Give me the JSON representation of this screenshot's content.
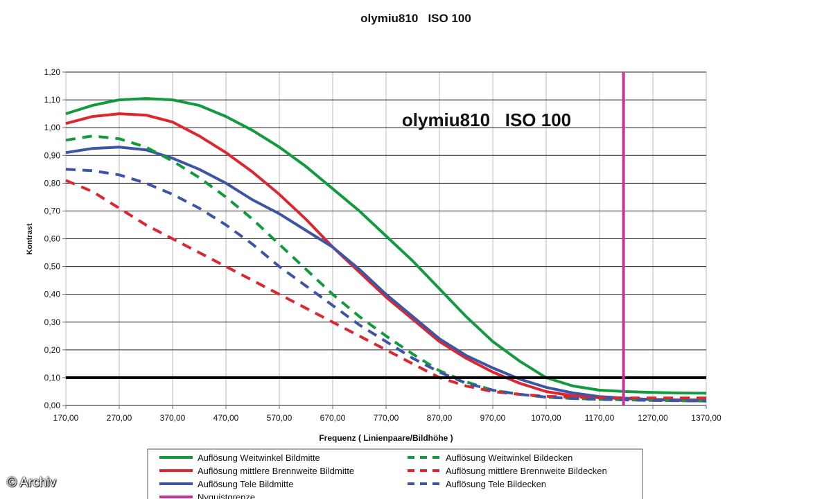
{
  "chart_data": {
    "type": "line",
    "title": "olymiu810   ISO 100",
    "inner_title": "olymiu810   ISO 100",
    "xlabel": "Frequenz ( Linienpaare/Bildhöhe )",
    "ylabel": "Kontrast",
    "xlim": [
      170,
      1370
    ],
    "ylim": [
      0,
      1.2
    ],
    "xticks": [
      "170,00",
      "270,00",
      "370,00",
      "470,00",
      "570,00",
      "670,00",
      "770,00",
      "870,00",
      "970,00",
      "1070,00",
      "1170,00",
      "1270,00",
      "1370,00"
    ],
    "yticks": [
      "0,00",
      "0,10",
      "0,20",
      "0,30",
      "0,40",
      "0,50",
      "0,60",
      "0,70",
      "0,80",
      "0,90",
      "1,00",
      "1,10",
      "1,20"
    ],
    "grid": "horizontal",
    "reference_line": {
      "y": 0.1,
      "color": "#000000"
    },
    "nyquist": {
      "x": 1215,
      "name": "Nyquistgrenze",
      "color": "#cc3399"
    },
    "legend_position": "bottom",
    "series": [
      {
        "name": "Auflösung Weitwinkel Bildmitte",
        "color": "#129a3e",
        "dash": false,
        "x": [
          170,
          220,
          270,
          320,
          370,
          420,
          470,
          520,
          570,
          620,
          670,
          720,
          770,
          820,
          870,
          920,
          970,
          1020,
          1070,
          1120,
          1170,
          1220,
          1270,
          1320,
          1370
        ],
        "y": [
          1.05,
          1.08,
          1.1,
          1.105,
          1.1,
          1.08,
          1.04,
          0.99,
          0.93,
          0.86,
          0.78,
          0.7,
          0.61,
          0.52,
          0.42,
          0.32,
          0.23,
          0.16,
          0.1,
          0.07,
          0.055,
          0.05,
          0.047,
          0.045,
          0.044
        ]
      },
      {
        "name": "Auflösung mittlere Brennweite Bildmitte",
        "color": "#dd2730",
        "dash": false,
        "x": [
          170,
          220,
          270,
          320,
          370,
          420,
          470,
          520,
          570,
          620,
          670,
          720,
          770,
          820,
          870,
          920,
          970,
          1020,
          1070,
          1120,
          1170,
          1220,
          1270,
          1320,
          1370
        ],
        "y": [
          1.015,
          1.04,
          1.05,
          1.045,
          1.02,
          0.97,
          0.91,
          0.84,
          0.76,
          0.67,
          0.57,
          0.48,
          0.39,
          0.31,
          0.23,
          0.17,
          0.12,
          0.08,
          0.05,
          0.035,
          0.028,
          0.024,
          0.022,
          0.02,
          0.02
        ]
      },
      {
        "name": "Auflösung Tele Bildmitte",
        "color": "#3e55a6",
        "dash": false,
        "x": [
          170,
          220,
          270,
          320,
          370,
          420,
          470,
          520,
          570,
          620,
          670,
          720,
          770,
          820,
          870,
          920,
          970,
          1020,
          1070,
          1120,
          1170,
          1220,
          1270,
          1320,
          1370
        ],
        "y": [
          0.91,
          0.925,
          0.93,
          0.92,
          0.89,
          0.85,
          0.8,
          0.74,
          0.69,
          0.63,
          0.57,
          0.49,
          0.4,
          0.32,
          0.24,
          0.18,
          0.135,
          0.095,
          0.065,
          0.045,
          0.032,
          0.026,
          0.021,
          0.018,
          0.016
        ]
      },
      {
        "name": "Nyquistgrenze",
        "color": "#cc3399",
        "dash": false,
        "x": [
          1215,
          1215
        ],
        "y": [
          0,
          1.2
        ]
      },
      {
        "name": "Auflösung Weitwinkel Bildecken",
        "color": "#129a3e",
        "dash": true,
        "x": [
          170,
          220,
          270,
          320,
          370,
          420,
          470,
          520,
          570,
          620,
          670,
          720,
          770,
          820,
          870,
          920,
          970,
          1020,
          1070,
          1120,
          1170,
          1220,
          1270,
          1320,
          1370
        ],
        "y": [
          0.955,
          0.97,
          0.96,
          0.93,
          0.88,
          0.82,
          0.75,
          0.67,
          0.58,
          0.49,
          0.4,
          0.32,
          0.25,
          0.185,
          0.125,
          0.085,
          0.055,
          0.04,
          0.03,
          0.025,
          0.022,
          0.02,
          0.018,
          0.017,
          0.016
        ]
      },
      {
        "name": "Auflösung mittlere Brennweite Bildecken",
        "color": "#dd2730",
        "dash": true,
        "x": [
          170,
          220,
          270,
          320,
          370,
          420,
          470,
          520,
          570,
          620,
          670,
          720,
          770,
          820,
          870,
          920,
          970,
          1020,
          1070,
          1120,
          1170,
          1220,
          1270,
          1320,
          1370
        ],
        "y": [
          0.81,
          0.77,
          0.71,
          0.65,
          0.6,
          0.55,
          0.5,
          0.45,
          0.4,
          0.35,
          0.3,
          0.25,
          0.2,
          0.15,
          0.1,
          0.07,
          0.05,
          0.04,
          0.033,
          0.03,
          0.028,
          0.027,
          0.027,
          0.027,
          0.027
        ]
      },
      {
        "name": "Auflösung Tele Bildecken",
        "color": "#3e55a6",
        "dash": true,
        "x": [
          170,
          220,
          270,
          320,
          370,
          420,
          470,
          520,
          570,
          620,
          670,
          720,
          770,
          820,
          870,
          920,
          970,
          1020,
          1070,
          1120,
          1170,
          1220,
          1270,
          1320,
          1370
        ],
        "y": [
          0.85,
          0.845,
          0.83,
          0.8,
          0.76,
          0.71,
          0.65,
          0.58,
          0.5,
          0.43,
          0.36,
          0.29,
          0.23,
          0.17,
          0.12,
          0.08,
          0.055,
          0.04,
          0.03,
          0.025,
          0.022,
          0.02,
          0.018,
          0.017,
          0.016
        ]
      }
    ]
  },
  "watermark": "© Archiv"
}
